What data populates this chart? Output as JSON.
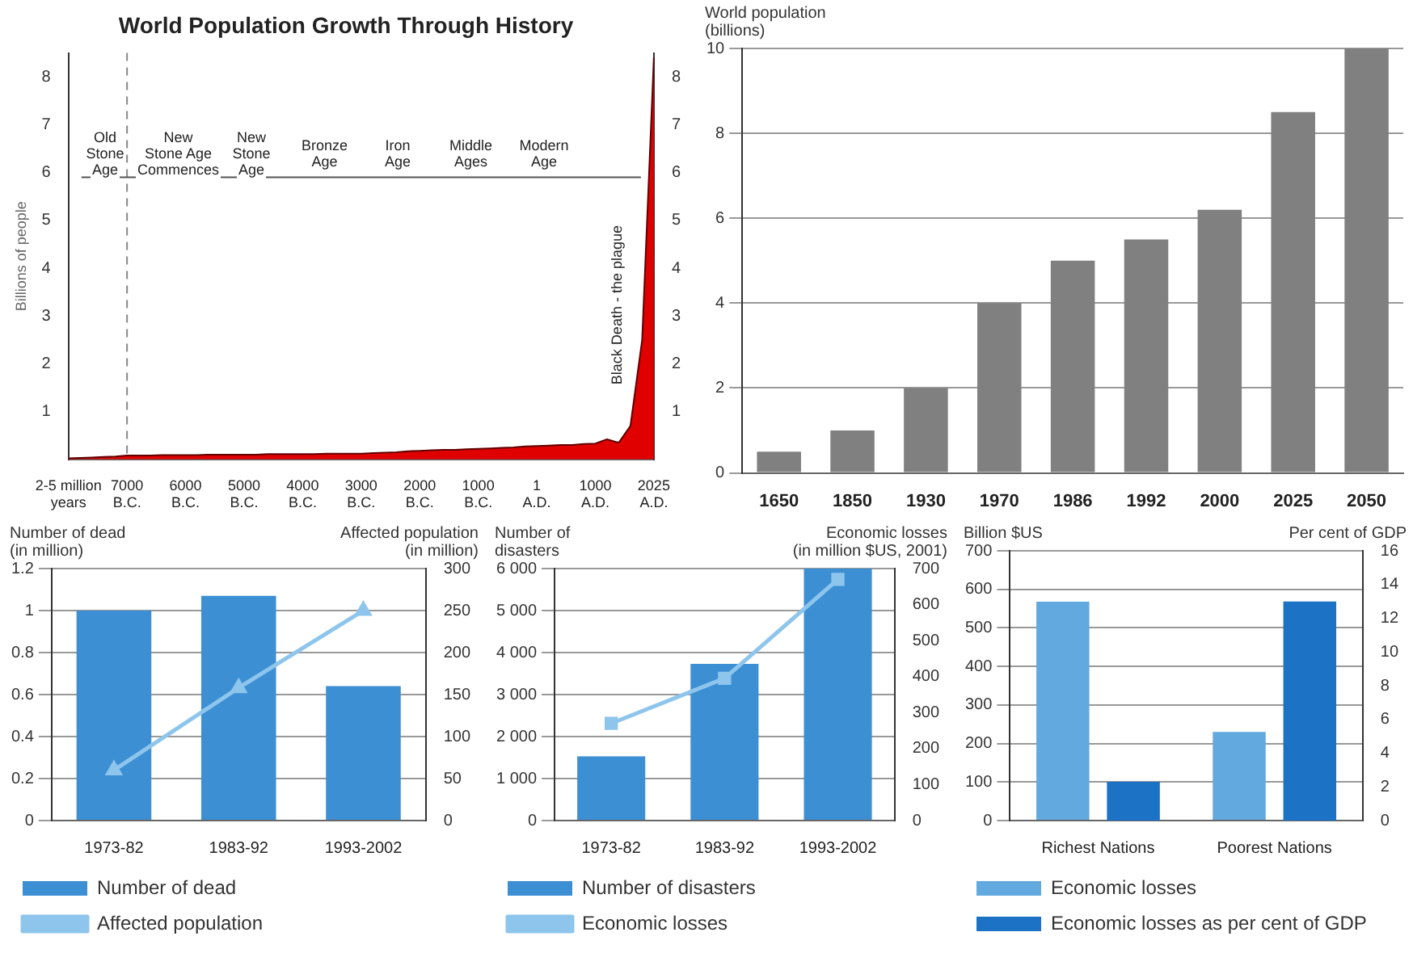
{
  "chart_data": [
    {
      "type": "area",
      "title": "World Population Growth Through History",
      "ylabel": "Billions of people",
      "categories": [
        "2-5 million\nyears",
        null,
        null,
        null,
        null,
        "7000\nB.C.",
        null,
        null,
        null,
        null,
        "6000\nB.C.",
        null,
        null,
        null,
        null,
        "5000\nB.C.",
        null,
        null,
        null,
        null,
        "4000\nB.C.",
        null,
        null,
        null,
        null,
        "3000\nB.C.",
        null,
        null,
        null,
        null,
        "2000\nB.C.",
        null,
        null,
        null,
        null,
        "1000\nB.C.",
        null,
        null,
        null,
        null,
        "1\nA.D.",
        null,
        null,
        null,
        null,
        "1000\nA.D.",
        null,
        null,
        null,
        null,
        "2025\nA.D."
      ],
      "values": [
        0.02,
        0.03,
        0.04,
        0.05,
        0.06,
        0.08,
        0.08,
        0.08,
        0.09,
        0.09,
        0.09,
        0.09,
        0.1,
        0.1,
        0.1,
        0.1,
        0.1,
        0.11,
        0.11,
        0.11,
        0.11,
        0.11,
        0.12,
        0.12,
        0.12,
        0.12,
        0.13,
        0.14,
        0.15,
        0.17,
        0.18,
        0.19,
        0.2,
        0.2,
        0.21,
        0.22,
        0.23,
        0.24,
        0.25,
        0.27,
        0.28,
        0.29,
        0.3,
        0.3,
        0.32,
        0.33,
        0.42,
        0.35,
        0.7,
        2.5,
        8.4
      ],
      "color": "#e00000",
      "ylim": [
        0,
        8.5
      ],
      "yticks": [
        1,
        2,
        3,
        4,
        5,
        6,
        7,
        8
      ],
      "y2lim": [
        0,
        8.5
      ],
      "y2ticks": [
        1,
        2,
        3,
        4,
        5,
        6,
        7,
        8
      ],
      "ref_lines": [
        {
          "axis": "x",
          "value": "7000\nB.C.",
          "line_style": "dashed",
          "color": "#888888"
        },
        {
          "axis": "y",
          "value": 5.9,
          "color": "#555555"
        }
      ],
      "annotations": [
        "Old\nStone\nAge",
        "New\nStone Age\nCommences",
        "New\nStone\nAge",
        "Bronze\nAge",
        "Iron\nAge",
        "Middle\nAges",
        "Modern\nAge",
        "Black Death - the plague"
      ],
      "grid": false
    },
    {
      "type": "bar",
      "ylabel": "World population\n(billions)",
      "categories": [
        "1650",
        "1850",
        "1930",
        "1970",
        "1986",
        "1992",
        "2000",
        "2025",
        "2050"
      ],
      "values": [
        0.5,
        1,
        2,
        4,
        5,
        5.5,
        6.2,
        8.5,
        10
      ],
      "color": "#808080",
      "ylim": [
        0,
        10
      ],
      "yticks": [
        0,
        2,
        4,
        6,
        8,
        10
      ],
      "grid": "y"
    },
    {
      "type": "bar",
      "ylabel": "Number of dead\n(in million)",
      "y2label": "Affected population\n(in million)",
      "categories": [
        "1973-82",
        "1983-92",
        "1993-2002"
      ],
      "series": [
        {
          "name": "Number of dead",
          "color": "#3d8fd4",
          "values": [
            1,
            1.07,
            0.64
          ]
        },
        {
          "name": "Affected population",
          "type": "line",
          "axis": "y2",
          "color": "#8ec5ec",
          "values": [
            60,
            158,
            250
          ]
        }
      ],
      "ylim": [
        0,
        1.2
      ],
      "yticks": [
        0,
        0.2,
        0.4,
        0.6,
        0.8,
        1,
        1.2
      ],
      "y2lim": [
        0,
        300
      ],
      "y2ticks": [
        0,
        50,
        100,
        150,
        200,
        250,
        300
      ],
      "grid": "y",
      "legend": "bottom left",
      "marker": "triangle"
    },
    {
      "type": "bar",
      "ylabel": "Number of\ndisasters",
      "y2label": "Economic losses\n(in million $US, 2001)",
      "categories": [
        "1973-82",
        "1983-92",
        "1993-2002"
      ],
      "series": [
        {
          "name": "Number of disasters",
          "color": "#3d8fd4",
          "values": [
            1530,
            3730,
            6000
          ]
        },
        {
          "name": "Economic losses",
          "type": "line",
          "axis": "y2",
          "color": "#8ec5ec",
          "values": [
            270,
            395,
            670
          ]
        }
      ],
      "ylim": [
        0,
        6000
      ],
      "yticks": [
        0,
        {
          "value": 1000,
          "label": "1 000"
        },
        {
          "value": 2000,
          "label": "2 000"
        },
        {
          "value": 3000,
          "label": "3 000"
        },
        {
          "value": 4000,
          "label": "4 000"
        },
        {
          "value": 5000,
          "label": "5 000"
        },
        {
          "value": 6000,
          "label": "6 000"
        }
      ],
      "y2lim": [
        0,
        700
      ],
      "y2ticks": [
        0,
        100,
        200,
        300,
        400,
        500,
        600,
        700
      ],
      "grid": "y",
      "legend": "bottom left",
      "marker": "square"
    },
    {
      "type": "bar",
      "ylabel": "Billion $US",
      "y2label": "Per cent of GDP",
      "categories": [
        "Richest Nations",
        "Poorest Nations"
      ],
      "series": [
        {
          "name": "Economic losses",
          "color": "#62a9e0",
          "values": [
            568,
            230
          ]
        },
        {
          "name": "Economic losses as per cent of GDP",
          "axis": "y2",
          "color": "#1c72c4",
          "values": [
            2.3,
            13
          ]
        }
      ],
      "ylim": [
        0,
        700
      ],
      "yticks": [
        0,
        100,
        200,
        300,
        400,
        500,
        600,
        700
      ],
      "y2lim": [
        0,
        16
      ],
      "y2ticks": [
        0,
        2,
        4,
        6,
        8,
        10,
        12,
        14,
        16
      ],
      "grid": "y",
      "legend": "bottom left"
    }
  ]
}
